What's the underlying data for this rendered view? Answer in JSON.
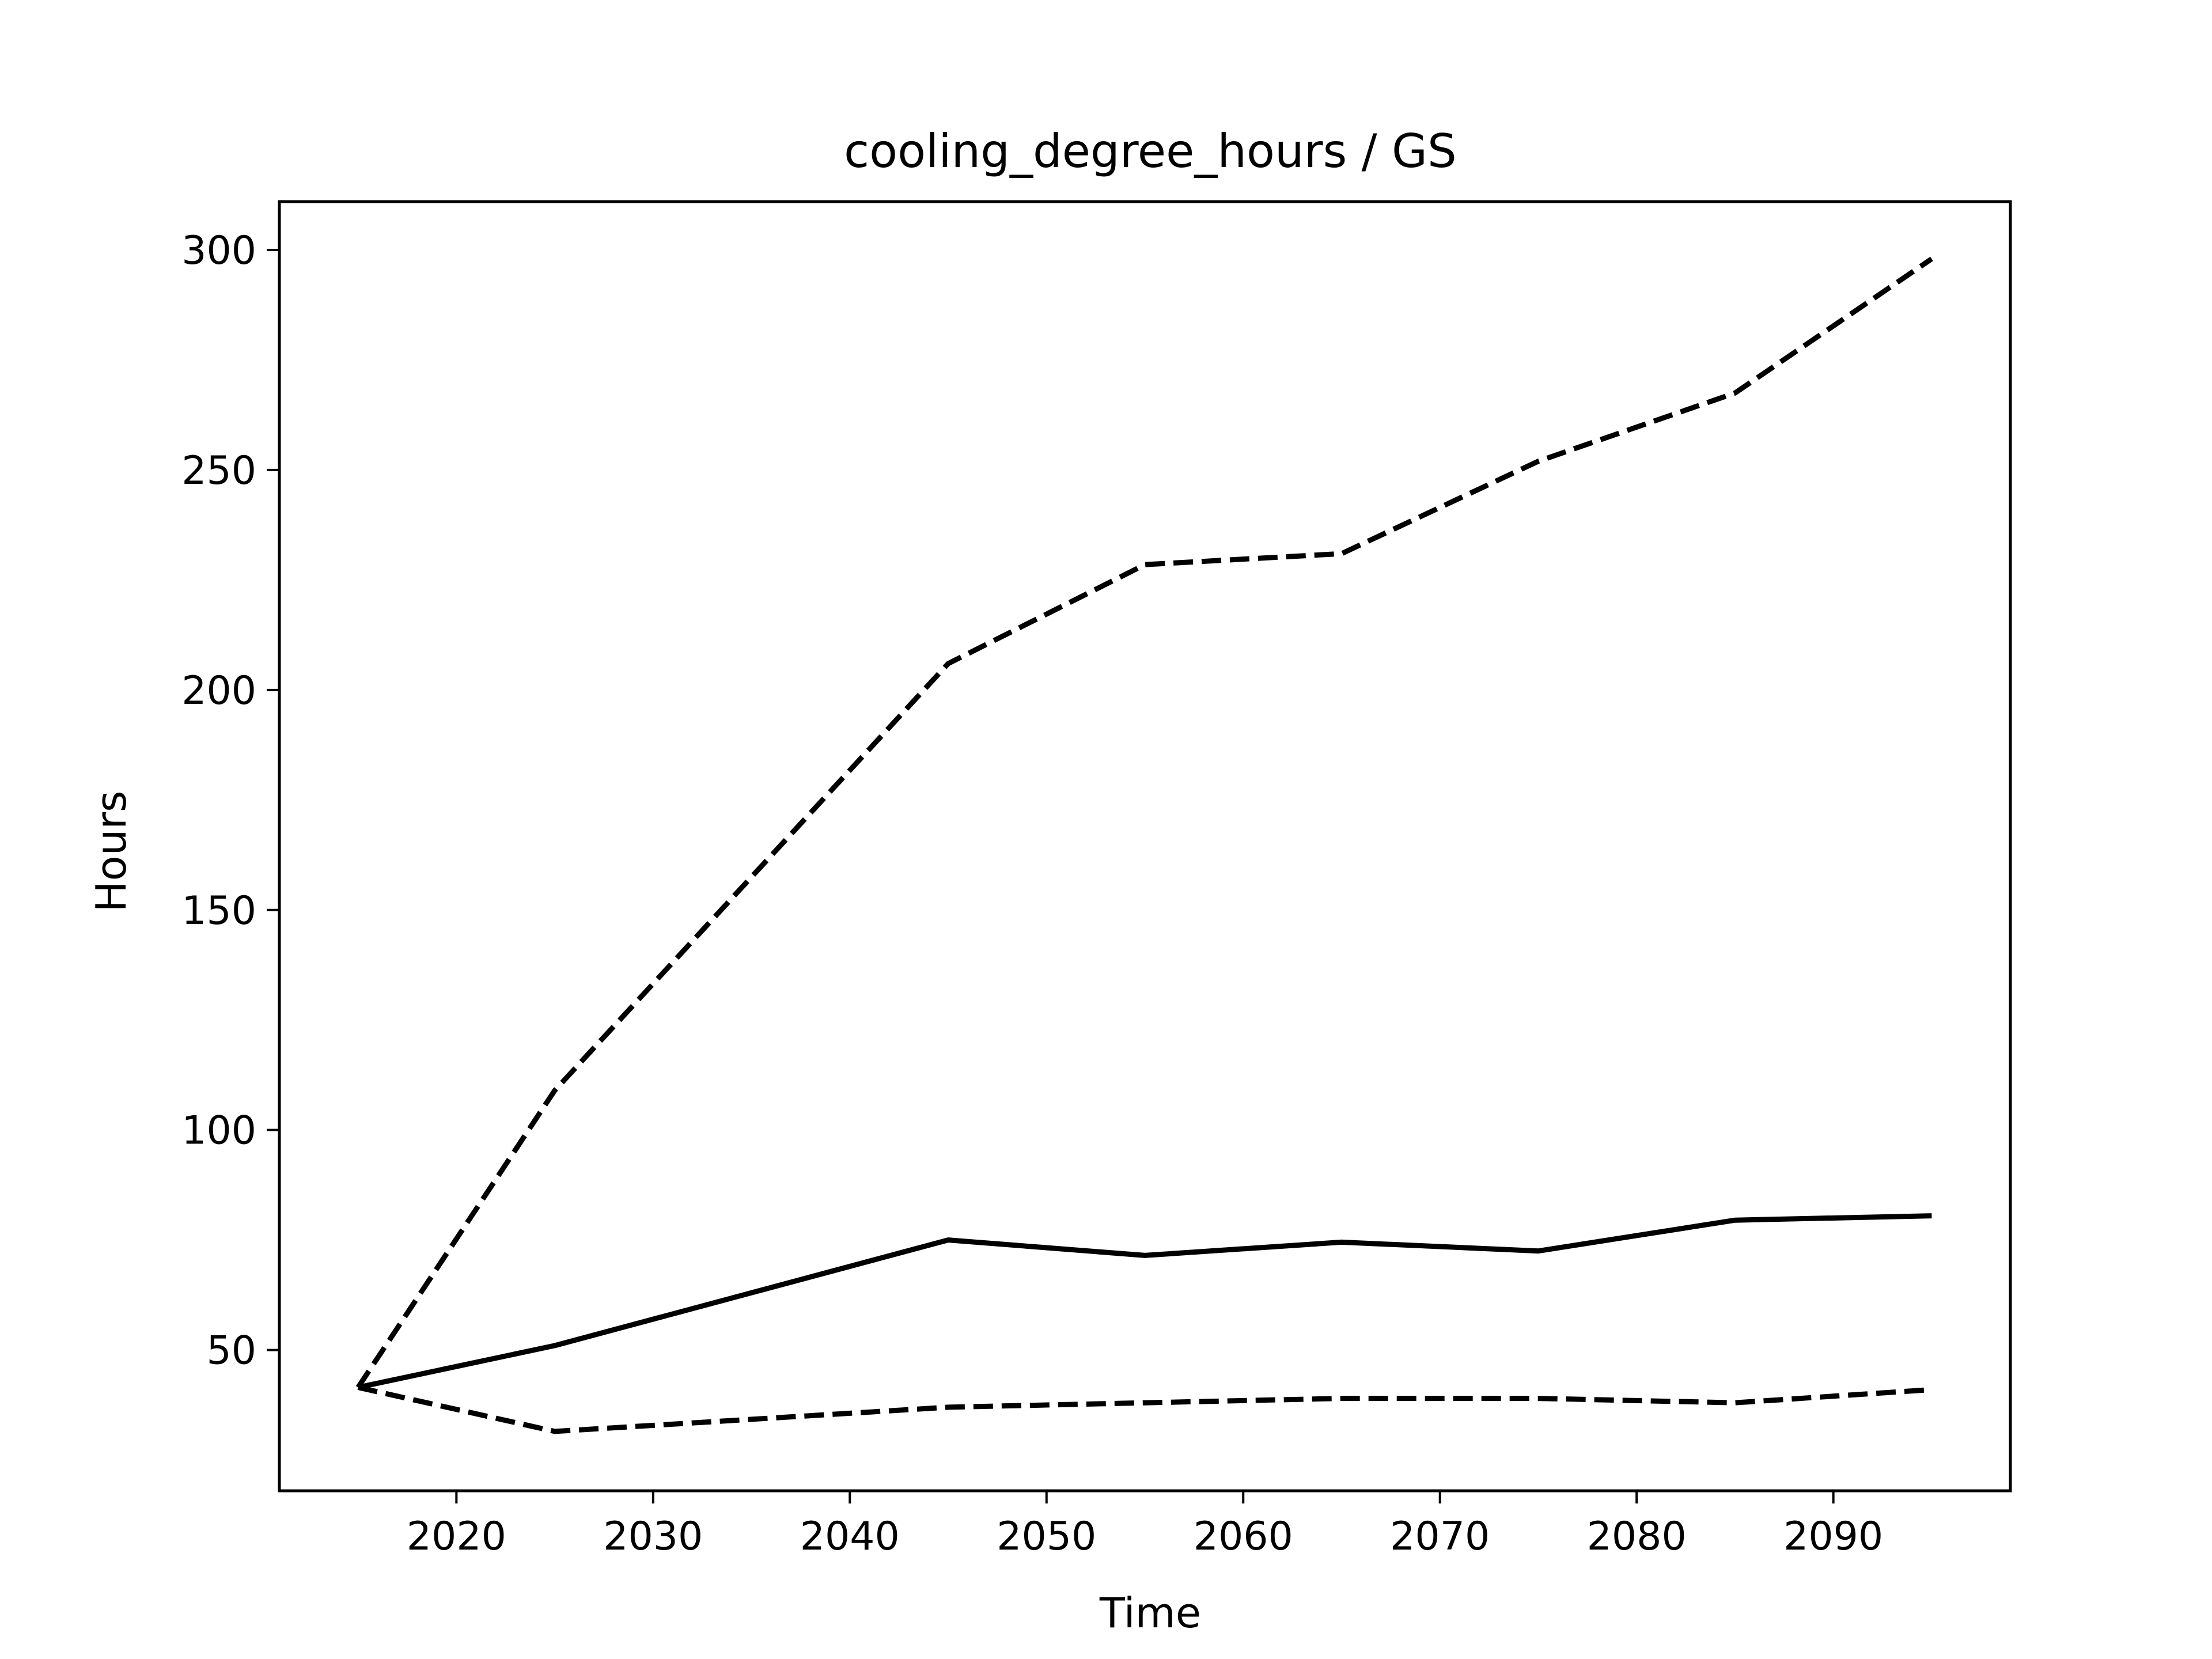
{
  "chart_data": {
    "type": "line",
    "title": "cooling_degree_hours / GS",
    "xlabel": "Time",
    "ylabel": "Hours",
    "xlim": [
      2011,
      2099
    ],
    "ylim": [
      18,
      311
    ],
    "x_ticks": [
      2020,
      2030,
      2040,
      2050,
      2060,
      2070,
      2080,
      2090
    ],
    "y_ticks": [
      50,
      100,
      150,
      200,
      250,
      300
    ],
    "x_tick_labels": [
      "2020",
      "2030",
      "2040",
      "2050",
      "2060",
      "2070",
      "2080",
      "2090"
    ],
    "y_tick_labels": [
      "50",
      "100",
      "150",
      "200",
      "250",
      "300"
    ],
    "grid": false,
    "line_color": "#000000",
    "x": [
      2015,
      2025,
      2045,
      2055,
      2065,
      2075,
      2085,
      2095
    ],
    "series": [
      {
        "style": "dashed",
        "values": [
          41.5,
          109,
          206,
          228.5,
          231,
          252,
          267.5,
          298
        ]
      },
      {
        "style": "solid",
        "values": [
          41.5,
          51,
          75,
          71.5,
          74.5,
          72.5,
          79.5,
          80.5
        ]
      },
      {
        "style": "dashed",
        "values": [
          41.5,
          31.5,
          37,
          38,
          39,
          39,
          38,
          41
        ]
      }
    ]
  }
}
